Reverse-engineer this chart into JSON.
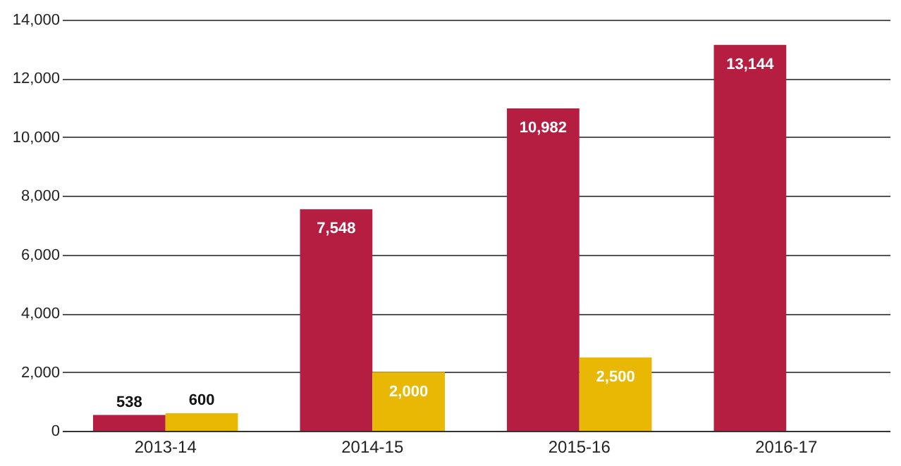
{
  "chart_data": {
    "type": "bar",
    "categories": [
      "2013-14",
      "2014-15",
      "2015-16",
      "2016-17"
    ],
    "series": [
      {
        "color": "#b51e41",
        "values": [
          538,
          7548,
          10982,
          13144
        ],
        "value_labels": [
          "538",
          "7,548",
          "10,982",
          "13,144"
        ]
      },
      {
        "color": "#e8b804",
        "values": [
          600,
          2000,
          2500,
          null
        ],
        "value_labels": [
          "600",
          "2,000",
          "2,500",
          null
        ]
      }
    ],
    "ylim": [
      0,
      14000
    ],
    "yticks": [
      {
        "value": 0,
        "label": "0"
      },
      {
        "value": 2000,
        "label": "2,000"
      },
      {
        "value": 4000,
        "label": "4,000"
      },
      {
        "value": 6000,
        "label": "6,000"
      },
      {
        "value": 8000,
        "label": "8,000"
      },
      {
        "value": 10000,
        "label": "10,000"
      },
      {
        "value": 12000,
        "label": "12,000"
      },
      {
        "value": 14000,
        "label": "14,000"
      }
    ],
    "grid": "y",
    "legend": false
  }
}
